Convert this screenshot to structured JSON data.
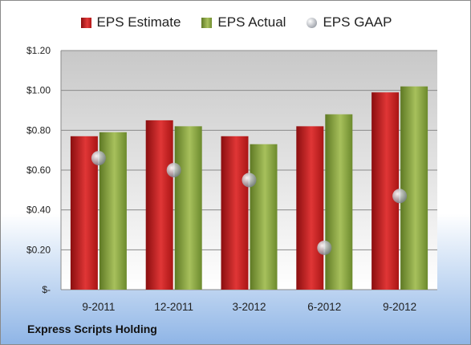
{
  "chart_data": {
    "type": "bar",
    "categories": [
      "9-2011",
      "12-2011",
      "3-2012",
      "6-2012",
      "9-2012"
    ],
    "series": [
      {
        "name": "EPS Estimate",
        "type": "bar",
        "values": [
          0.77,
          0.85,
          0.77,
          0.82,
          0.99
        ]
      },
      {
        "name": "EPS Actual",
        "type": "bar",
        "values": [
          0.79,
          0.82,
          0.73,
          0.88,
          1.02
        ]
      },
      {
        "name": "EPS GAAP",
        "type": "marker",
        "values": [
          0.66,
          0.6,
          0.55,
          0.21,
          0.47
        ]
      }
    ],
    "ylim": [
      0,
      1.2
    ],
    "yticks": [
      0,
      0.2,
      0.4,
      0.6,
      0.8,
      1.0,
      1.2
    ],
    "ytick_labels": [
      "$-",
      "$0.20",
      "$0.40",
      "$0.60",
      "$0.80",
      "$1.00",
      "$1.20"
    ],
    "grid": true,
    "legend": "top",
    "colors": {
      "estimate": "#c62020",
      "actual": "#8fae44",
      "gaap": "#a9adb3"
    }
  },
  "footer": {
    "company": "Express Scripts Holding"
  }
}
